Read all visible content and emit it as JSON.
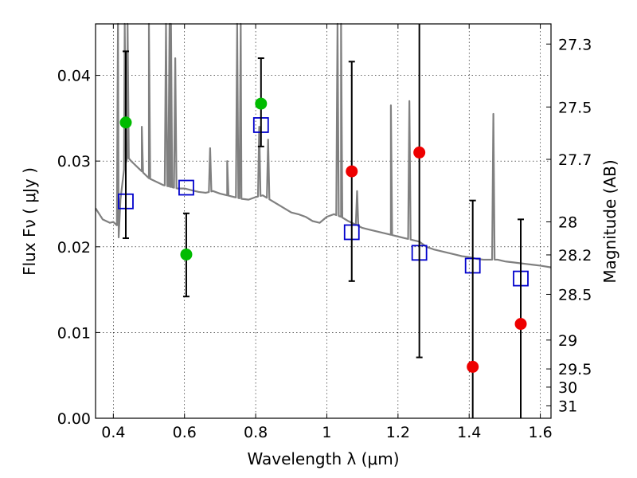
{
  "chart_data": {
    "type": "scatter",
    "xlabel": "Wavelength  λ (μm)",
    "ylabel": "Flux  Fν  ( μJy )",
    "ylabel_right": "Magnitude (AB)",
    "xlim": [
      0.35,
      1.63
    ],
    "ylim": [
      0.0,
      0.046
    ],
    "grid": true,
    "x_ticks": [
      {
        "value": 0.4,
        "label": "0.4"
      },
      {
        "value": 0.6,
        "label": "0.6"
      },
      {
        "value": 0.8,
        "label": "0.8"
      },
      {
        "value": 1.0,
        "label": "1"
      },
      {
        "value": 1.2,
        "label": "1.2"
      },
      {
        "value": 1.4,
        "label": "1.4"
      },
      {
        "value": 1.6,
        "label": "1.6"
      }
    ],
    "y_ticks": [
      {
        "value": 0.0,
        "label": "0.00"
      },
      {
        "value": 0.01,
        "label": "0.01"
      },
      {
        "value": 0.02,
        "label": "0.02"
      },
      {
        "value": 0.03,
        "label": "0.03"
      },
      {
        "value": 0.04,
        "label": "0.04"
      }
    ],
    "right_ticks": [
      {
        "mag": 27.3,
        "label": "27.3"
      },
      {
        "mag": 27.5,
        "label": "27.5"
      },
      {
        "mag": 27.7,
        "label": "27.7"
      },
      {
        "mag": 28.0,
        "label": "28"
      },
      {
        "mag": 28.2,
        "label": "28.2"
      },
      {
        "mag": 28.5,
        "label": "28.5"
      },
      {
        "mag": 29.0,
        "label": "29"
      },
      {
        "mag": 29.5,
        "label": "29.5"
      },
      {
        "mag": 30.0,
        "label": "30"
      },
      {
        "mag": 31.0,
        "label": "31"
      }
    ],
    "colors": {
      "spectrum": "#808080",
      "model_square": "#0000cc",
      "green_point": "#00bb00",
      "red_point": "#ee0000",
      "errorbar": "#000000"
    },
    "spectrum": {
      "x": [
        0.35,
        0.37,
        0.39,
        0.4,
        0.41,
        0.415,
        0.42,
        0.43,
        0.44,
        0.45,
        0.46,
        0.47,
        0.48,
        0.5,
        0.52,
        0.54,
        0.56,
        0.58,
        0.6,
        0.62,
        0.64,
        0.66,
        0.68,
        0.7,
        0.72,
        0.74,
        0.76,
        0.78,
        0.8,
        0.82,
        0.84,
        0.86,
        0.88,
        0.9,
        0.92,
        0.94,
        0.96,
        0.98,
        1.0,
        1.02,
        1.04,
        1.06,
        1.08,
        1.1,
        1.12,
        1.14,
        1.16,
        1.18,
        1.2,
        1.22,
        1.24,
        1.26,
        1.28,
        1.3,
        1.32,
        1.34,
        1.36,
        1.38,
        1.4,
        1.42,
        1.44,
        1.46,
        1.48,
        1.5,
        1.52,
        1.54,
        1.56,
        1.58,
        1.6,
        1.63
      ],
      "y": [
        0.0245,
        0.0232,
        0.0228,
        0.0229,
        0.0225,
        0.0211,
        0.0255,
        0.029,
        0.0305,
        0.03,
        0.0296,
        0.0292,
        0.0288,
        0.028,
        0.0276,
        0.0272,
        0.027,
        0.0268,
        0.0268,
        0.0266,
        0.0264,
        0.0263,
        0.0265,
        0.0262,
        0.026,
        0.0258,
        0.0256,
        0.0255,
        0.0258,
        0.026,
        0.0255,
        0.025,
        0.0245,
        0.024,
        0.0238,
        0.0235,
        0.023,
        0.0228,
        0.0235,
        0.0238,
        0.0235,
        0.023,
        0.0226,
        0.0222,
        0.022,
        0.0218,
        0.0216,
        0.0214,
        0.0212,
        0.021,
        0.0208,
        0.0206,
        0.02,
        0.0197,
        0.0195,
        0.0193,
        0.0191,
        0.0189,
        0.0188,
        0.0186,
        0.0185,
        0.0185,
        0.0185,
        0.0183,
        0.0182,
        0.0181,
        0.018,
        0.0179,
        0.0178,
        0.0176
      ]
    },
    "emission_lines": [
      {
        "x": 0.413,
        "peak": 0.046
      },
      {
        "x": 0.432,
        "peak": 0.046
      },
      {
        "x": 0.44,
        "peak": 0.046
      },
      {
        "x": 0.48,
        "peak": 0.034
      },
      {
        "x": 0.5,
        "peak": 0.046
      },
      {
        "x": 0.548,
        "peak": 0.046
      },
      {
        "x": 0.558,
        "peak": 0.046
      },
      {
        "x": 0.562,
        "peak": 0.046
      },
      {
        "x": 0.574,
        "peak": 0.042
      },
      {
        "x": 0.672,
        "peak": 0.0315
      },
      {
        "x": 0.72,
        "peak": 0.03
      },
      {
        "x": 0.748,
        "peak": 0.046
      },
      {
        "x": 0.758,
        "peak": 0.046
      },
      {
        "x": 0.81,
        "peak": 0.034
      },
      {
        "x": 0.835,
        "peak": 0.0325
      },
      {
        "x": 1.03,
        "peak": 0.046
      },
      {
        "x": 1.04,
        "peak": 0.046
      },
      {
        "x": 1.085,
        "peak": 0.0265
      },
      {
        "x": 1.18,
        "peak": 0.0365
      },
      {
        "x": 1.232,
        "peak": 0.037
      },
      {
        "x": 1.468,
        "peak": 0.0355
      }
    ],
    "series": [
      {
        "marker": "square",
        "x": [
          0.435,
          0.605,
          0.815,
          1.07,
          1.26,
          1.41,
          1.545
        ],
        "y": [
          0.0253,
          0.0269,
          0.0342,
          0.0217,
          0.0193,
          0.0178,
          0.0163
        ]
      },
      {
        "marker": "circle",
        "color": "green",
        "x": [
          0.435,
          0.605,
          0.815
        ],
        "y": [
          0.0345,
          0.0191,
          0.0367
        ],
        "err_low": [
          0.021,
          0.0142,
          0.0317
        ],
        "err_high": [
          0.0428,
          0.0239,
          0.042
        ]
      },
      {
        "marker": "circle",
        "color": "red",
        "x": [
          1.07,
          1.26,
          1.41,
          1.545
        ],
        "y": [
          0.0288,
          0.031,
          0.006,
          0.011
        ],
        "err_low": [
          0.016,
          0.0071,
          0.0,
          0.0
        ],
        "err_high": [
          0.0416,
          0.046,
          0.0254,
          0.0232
        ]
      }
    ]
  }
}
